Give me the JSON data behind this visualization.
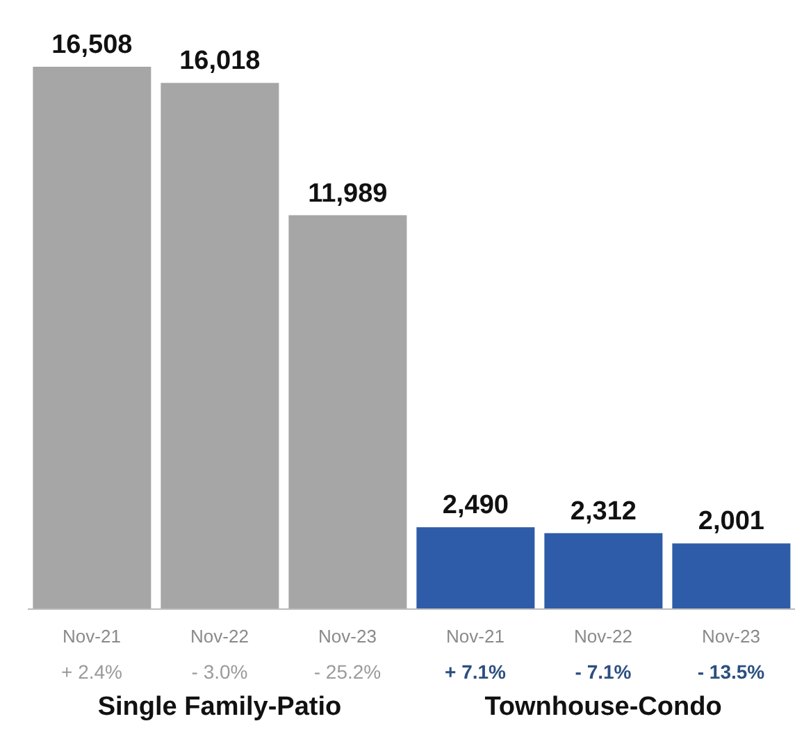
{
  "chart_data": {
    "type": "bar",
    "categories": [
      "Nov-21",
      "Nov-22",
      "Nov-23",
      "Nov-21",
      "Nov-22",
      "Nov-23"
    ],
    "values": [
      16508,
      16018,
      11989,
      2490,
      2312,
      2001
    ],
    "colors": [
      "#a6a6a6",
      "#a6a6a6",
      "#a6a6a6",
      "#2e5ca8",
      "#2e5ca8",
      "#2e5ca8"
    ],
    "value_labels": [
      "16,508",
      "16,018",
      "11,989",
      "2,490",
      "2,312",
      "2,001"
    ],
    "annotations": [
      "+ 2.4%",
      "- 3.0%",
      "- 25.2%",
      "+ 7.1%",
      "- 7.1%",
      "- 13.5%",
      "Single Family-Patio",
      "Townhouse-Condo"
    ]
  }
}
